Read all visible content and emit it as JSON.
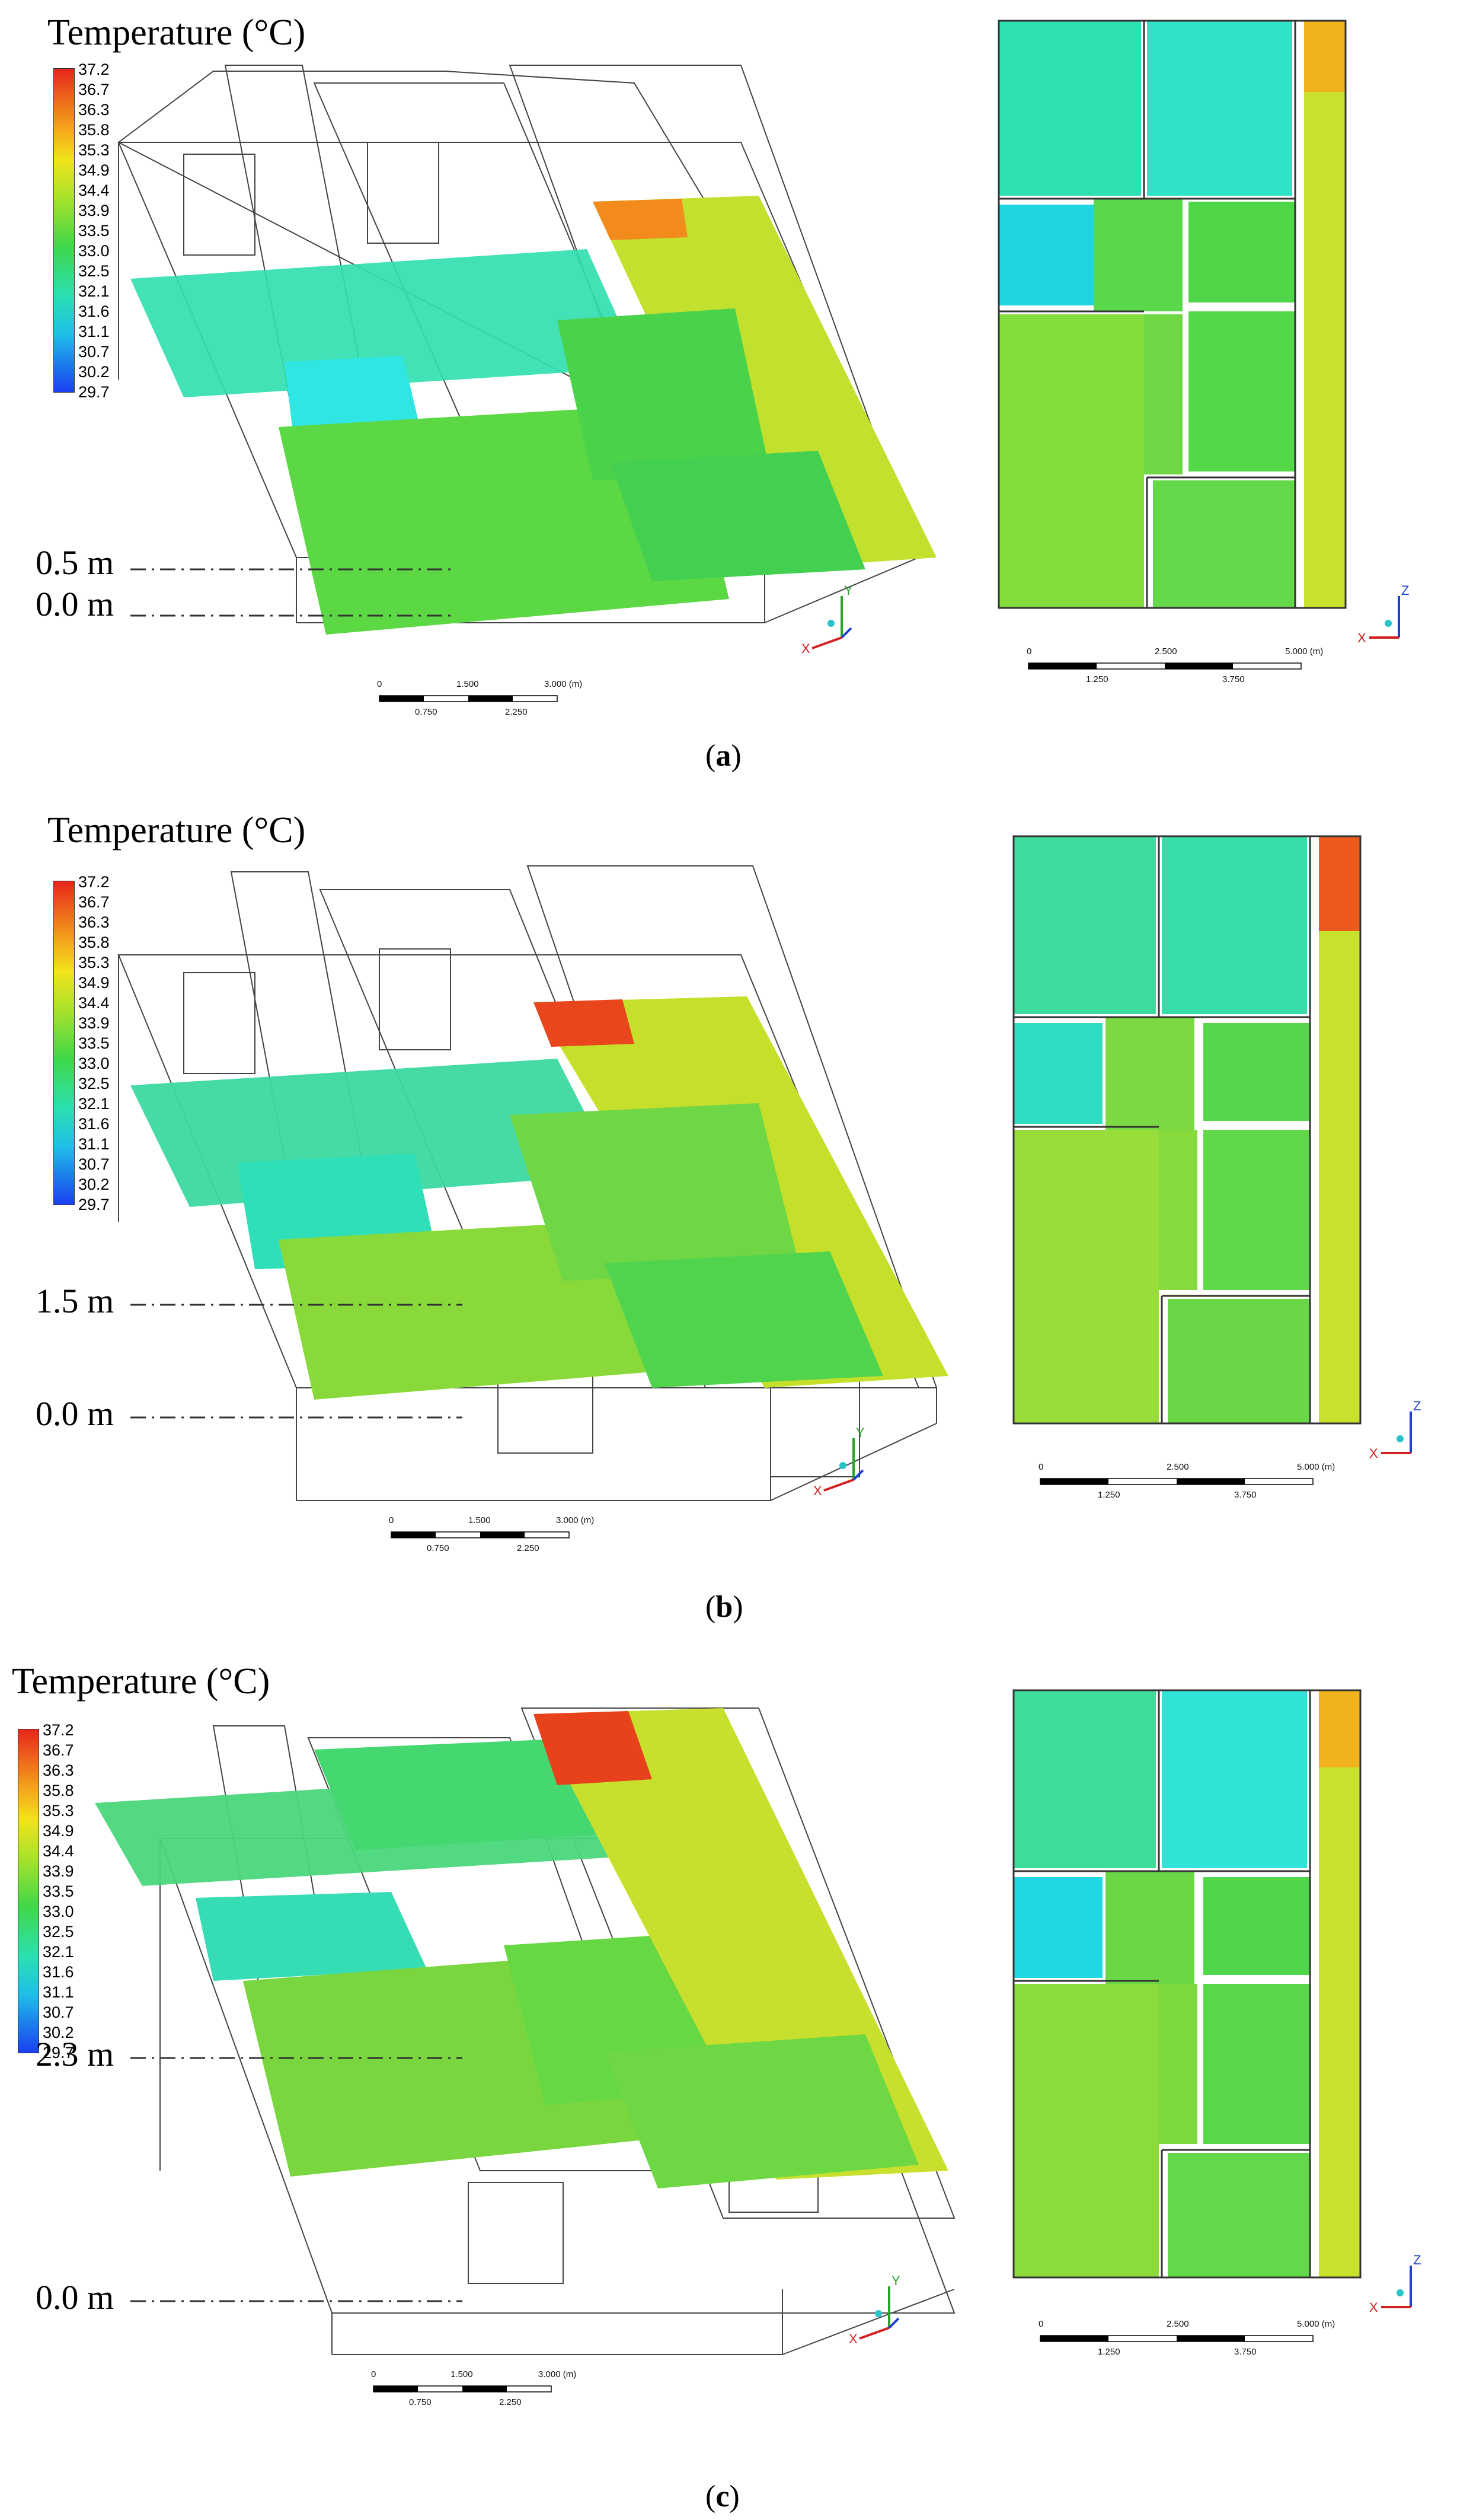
{
  "legend": {
    "title": "Temperature (°C)",
    "ticks": [
      "37.2",
      "36.7",
      "36.3",
      "35.8",
      "35.3",
      "34.9",
      "34.4",
      "33.9",
      "33.5",
      "33.0",
      "32.5",
      "32.1",
      "31.6",
      "31.1",
      "30.7",
      "30.2",
      "29.7"
    ]
  },
  "scalebar_3d": {
    "labels_top": [
      "0",
      "1.500",
      "3.000 (m)"
    ],
    "labels_bottom": [
      "0.750",
      "2.250"
    ]
  },
  "scalebar_plan": {
    "labels_top": [
      "0",
      "2.500",
      "5.000 (m)"
    ],
    "labels_bottom": [
      "1.250",
      "3.750"
    ]
  },
  "axes": {
    "iso": {
      "y": "Y",
      "x": "X"
    },
    "plan": {
      "z": "Z",
      "x": "X"
    }
  },
  "panels": [
    {
      "caption_open": "(",
      "caption_letter": "a",
      "caption_close": ")",
      "heights": [
        "0.5 m",
        "0.0 m"
      ]
    },
    {
      "caption_open": "(",
      "caption_letter": "b",
      "caption_close": ")",
      "heights": [
        "1.5 m",
        "0.0 m"
      ]
    },
    {
      "caption_open": "(",
      "caption_letter": "c",
      "caption_close": ")",
      "heights": [
        "2.3 m",
        "0.0 m"
      ]
    }
  ],
  "colors": {
    "hot": "#e8401c",
    "warm": "#f2d21b",
    "mild": "#b8e02a",
    "green": "#4ed34b",
    "cool": "#35dfb1",
    "cold": "#20c9e6",
    "cyan": "#2fe8e0"
  }
}
